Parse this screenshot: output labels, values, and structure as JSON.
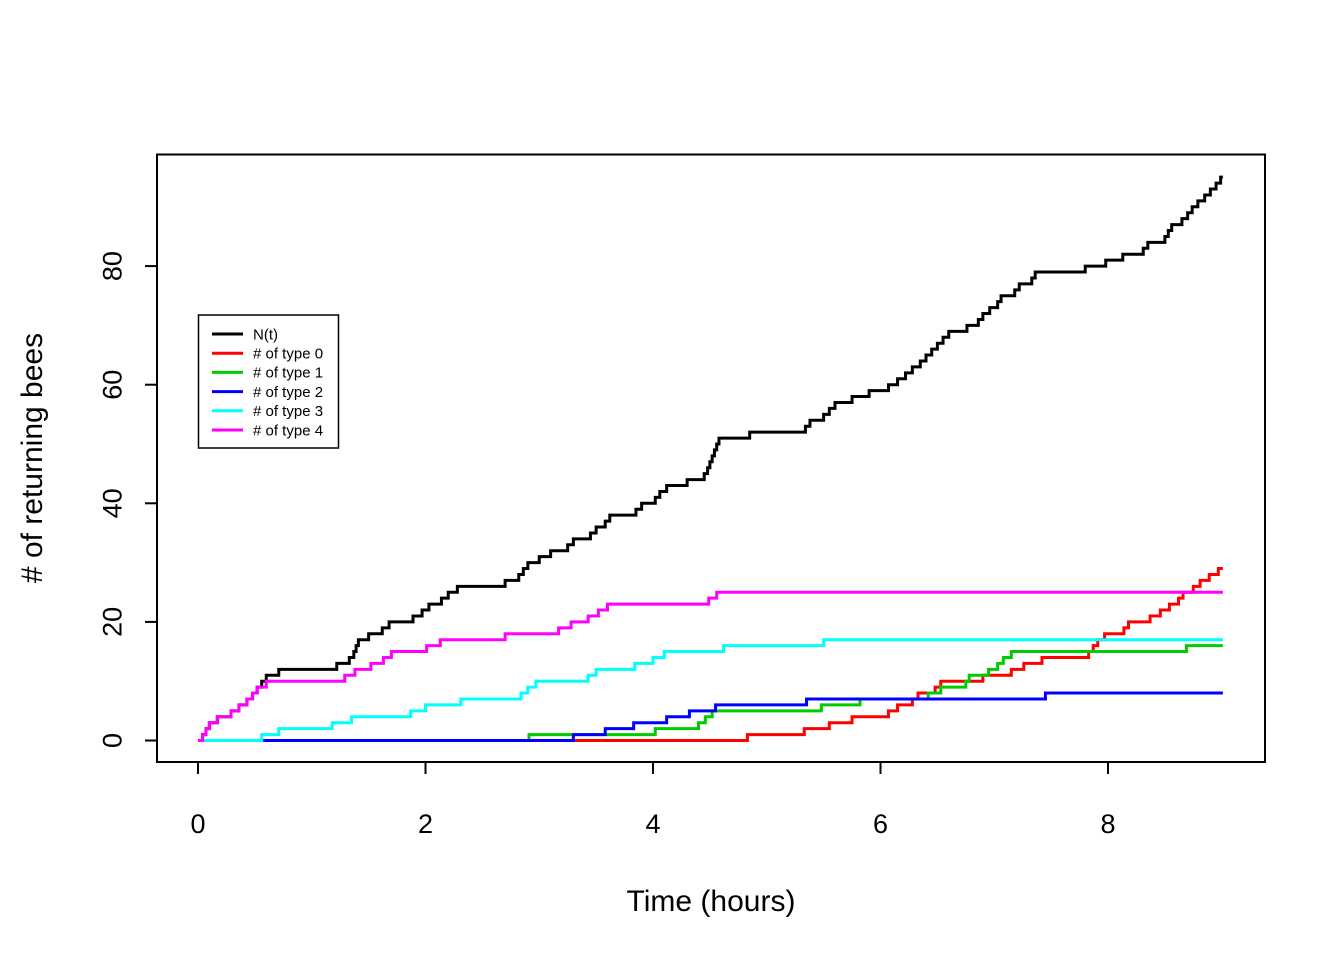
{
  "figure": {
    "background": "#ffffff",
    "border_color": "#000000"
  },
  "chart_data": {
    "type": "line",
    "subtype": "step-counting-process",
    "title": "",
    "xlabel": "Time (hours)",
    "ylabel": "# of returning bees",
    "xticks": [
      0,
      2,
      4,
      6,
      8
    ],
    "yticks": [
      0,
      20,
      40,
      60,
      80
    ],
    "xlim": [
      -0.36,
      9.42
    ],
    "ylim": [
      -3.6,
      98.8
    ],
    "grid": false,
    "legend_position": "inside-upper-left",
    "start_time": 0,
    "end_time": 9.01,
    "series": [
      {
        "name": "N(t)",
        "color": "#000000",
        "final_count": 95,
        "event_times": [
          0.04,
          0.07,
          0.1,
          0.17,
          0.29,
          0.36,
          0.43,
          0.48,
          0.52,
          0.56,
          0.6,
          0.71,
          1.22,
          1.33,
          1.37,
          1.39,
          1.41,
          1.5,
          1.62,
          1.68,
          1.89,
          1.97,
          2.03,
          2.14,
          2.2,
          2.28,
          2.7,
          2.82,
          2.86,
          2.9,
          3.0,
          3.1,
          3.25,
          3.3,
          3.45,
          3.5,
          3.58,
          3.62,
          3.85,
          3.9,
          4.02,
          4.06,
          4.12,
          4.3,
          4.45,
          4.48,
          4.5,
          4.52,
          4.54,
          4.56,
          4.58,
          4.85,
          5.34,
          5.38,
          5.5,
          5.55,
          5.6,
          5.75,
          5.9,
          6.07,
          6.15,
          6.22,
          6.28,
          6.35,
          6.4,
          6.45,
          6.5,
          6.55,
          6.6,
          6.76,
          6.86,
          6.9,
          6.96,
          7.03,
          7.06,
          7.18,
          7.22,
          7.33,
          7.36,
          7.8,
          7.98,
          8.13,
          8.31,
          8.35,
          8.5,
          8.53,
          8.56,
          8.65,
          8.7,
          8.74,
          8.79,
          8.85,
          8.9,
          8.95,
          8.99
        ]
      },
      {
        "name": "# of type 0",
        "color": "#FF0000",
        "final_count": 29,
        "event_times": [
          4.83,
          5.33,
          5.55,
          5.75,
          6.07,
          6.15,
          6.28,
          6.33,
          6.48,
          6.53,
          6.9,
          7.15,
          7.26,
          7.42,
          7.83,
          7.87,
          7.91,
          7.97,
          8.14,
          8.18,
          8.37,
          8.46,
          8.54,
          8.62,
          8.66,
          8.75,
          8.81,
          8.89,
          8.97
        ]
      },
      {
        "name": "# of type 1",
        "color": "#00CD00",
        "final_count": 16,
        "event_times": [
          2.91,
          4.02,
          4.4,
          4.46,
          4.52,
          5.48,
          5.82,
          6.42,
          6.53,
          6.75,
          6.78,
          6.95,
          7.03,
          7.08,
          7.15,
          8.69
        ]
      },
      {
        "name": "# of type 2",
        "color": "#0000FF",
        "final_count": 8,
        "event_times": [
          3.3,
          3.58,
          3.83,
          4.12,
          4.32,
          4.55,
          5.35,
          7.45
        ]
      },
      {
        "name": "# of type 3",
        "color": "#00FFFF",
        "final_count": 17,
        "event_times": [
          0.56,
          0.71,
          1.18,
          1.35,
          1.87,
          2.0,
          2.31,
          2.84,
          2.9,
          2.97,
          3.43,
          3.5,
          3.84,
          4.0,
          4.1,
          4.62,
          5.5
        ]
      },
      {
        "name": "# of type 4",
        "color": "#FF00FF",
        "final_count": 25,
        "event_times": [
          0.04,
          0.07,
          0.1,
          0.17,
          0.29,
          0.36,
          0.43,
          0.48,
          0.52,
          0.6,
          1.29,
          1.38,
          1.52,
          1.63,
          1.7,
          2.01,
          2.13,
          2.7,
          3.17,
          3.28,
          3.43,
          3.52,
          3.6,
          4.49,
          4.56
        ]
      }
    ]
  }
}
